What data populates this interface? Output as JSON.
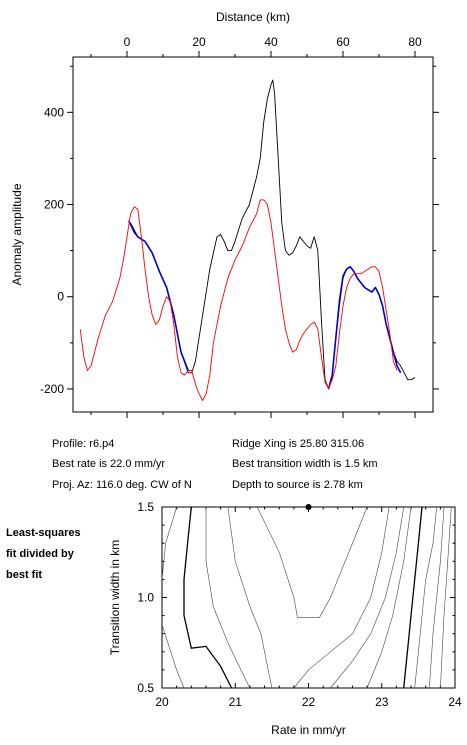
{
  "chart_data": [
    {
      "type": "line",
      "title": "",
      "xlabel": "Distance (km)",
      "ylabel": "Anomaly amplitude",
      "xlim": [
        -15,
        85
      ],
      "ylim": [
        -250,
        520
      ],
      "x_ticks": [
        "0",
        "20",
        "40",
        "60",
        "80"
      ],
      "y_ticks": [
        "400",
        "200",
        "0",
        "-200"
      ],
      "grid": false,
      "series": [
        {
          "color": "#000000",
          "points": [
            [
              1,
              160
            ],
            [
              3,
              130
            ],
            [
              5,
              120
            ],
            [
              7,
              95
            ],
            [
              9,
              55
            ],
            [
              11,
              20
            ],
            [
              13,
              -40
            ],
            [
              15,
              -120
            ],
            [
              17,
              -165
            ],
            [
              18,
              -165
            ],
            [
              19,
              -140
            ],
            [
              21,
              -40
            ],
            [
              23,
              60
            ],
            [
              25,
              130
            ],
            [
              26,
              135
            ],
            [
              27,
              120
            ],
            [
              28,
              100
            ],
            [
              29,
              100
            ],
            [
              30,
              120
            ],
            [
              32,
              170
            ],
            [
              34,
              200
            ],
            [
              36,
              260
            ],
            [
              37,
              300
            ],
            [
              38,
              380
            ],
            [
              39,
              430
            ],
            [
              40,
              460
            ],
            [
              40.5,
              470
            ],
            [
              41,
              440
            ],
            [
              42,
              300
            ],
            [
              43,
              160
            ],
            [
              44,
              100
            ],
            [
              45,
              90
            ],
            [
              46,
              95
            ],
            [
              47,
              110
            ],
            [
              48,
              130
            ],
            [
              49,
              120
            ],
            [
              50,
              110
            ],
            [
              51,
              105
            ],
            [
              52,
              130
            ],
            [
              53,
              100
            ],
            [
              54,
              -50
            ],
            [
              55,
              -180
            ],
            [
              56,
              -200
            ],
            [
              57,
              -170
            ],
            [
              58,
              -90
            ],
            [
              59,
              -20
            ],
            [
              60,
              40
            ],
            [
              61,
              60
            ],
            [
              62,
              65
            ],
            [
              63,
              55
            ],
            [
              64,
              40
            ],
            [
              65,
              30
            ],
            [
              66,
              20
            ],
            [
              67,
              15
            ],
            [
              68,
              10
            ],
            [
              69,
              20
            ],
            [
              70,
              5
            ],
            [
              71,
              -20
            ],
            [
              72,
              -60
            ],
            [
              73,
              -90
            ],
            [
              74,
              -120
            ],
            [
              75,
              -140
            ],
            [
              76,
              -150
            ],
            [
              77,
              -165
            ],
            [
              78,
              -180
            ],
            [
              79,
              -180
            ],
            [
              80,
              -175
            ]
          ]
        },
        {
          "color": "#0000cc",
          "points": [
            [
              0.5,
              165
            ],
            [
              2,
              140
            ],
            [
              3,
              130
            ],
            [
              5,
              120
            ],
            [
              7,
              95
            ],
            [
              9,
              55
            ],
            [
              11,
              20
            ],
            [
              13,
              -40
            ],
            [
              15,
              -120
            ],
            [
              17,
              -160
            ]
          ]
        },
        {
          "color": "#0000cc",
          "points": [
            [
              56,
              -200
            ],
            [
              57,
              -170
            ],
            [
              58,
              -90
            ],
            [
              59,
              -10
            ],
            [
              60,
              45
            ],
            [
              61,
              60
            ],
            [
              62,
              65
            ],
            [
              63,
              55
            ],
            [
              64,
              40
            ],
            [
              65,
              30
            ],
            [
              66,
              20
            ],
            [
              67,
              15
            ],
            [
              68,
              10
            ],
            [
              69,
              20
            ],
            [
              70,
              5
            ],
            [
              71,
              -20
            ],
            [
              72,
              -60
            ],
            [
              73,
              -90
            ],
            [
              74,
              -120
            ],
            [
              75,
              -150
            ],
            [
              76,
              -165
            ]
          ]
        },
        {
          "color": "#ff0000",
          "points": [
            [
              -13,
              -70
            ],
            [
              -12,
              -130
            ],
            [
              -11,
              -160
            ],
            [
              -10,
              -150
            ],
            [
              -8,
              -90
            ],
            [
              -6,
              -40
            ],
            [
              -4,
              -10
            ],
            [
              -2,
              40
            ],
            [
              -1,
              80
            ],
            [
              0,
              130
            ],
            [
              1,
              180
            ],
            [
              2,
              195
            ],
            [
              3,
              190
            ],
            [
              4,
              130
            ],
            [
              5,
              60
            ],
            [
              6,
              0
            ],
            [
              7,
              -40
            ],
            [
              8,
              -60
            ],
            [
              9,
              -50
            ],
            [
              10,
              -20
            ],
            [
              11,
              0
            ],
            [
              12,
              -10
            ],
            [
              13,
              -60
            ],
            [
              14,
              -130
            ],
            [
              15,
              -165
            ],
            [
              16,
              -170
            ],
            [
              17,
              -160
            ],
            [
              18,
              -160
            ],
            [
              19,
              -190
            ],
            [
              20,
              -210
            ],
            [
              21,
              -225
            ],
            [
              22,
              -210
            ],
            [
              23,
              -170
            ],
            [
              24,
              -100
            ],
            [
              26,
              -20
            ],
            [
              28,
              40
            ],
            [
              30,
              80
            ],
            [
              32,
              110
            ],
            [
              34,
              150
            ],
            [
              36,
              180
            ],
            [
              37,
              210
            ],
            [
              38,
              210
            ],
            [
              39,
              200
            ],
            [
              40,
              160
            ],
            [
              41,
              100
            ],
            [
              42,
              40
            ],
            [
              43,
              -20
            ],
            [
              44,
              -70
            ],
            [
              45,
              -100
            ],
            [
              46,
              -120
            ],
            [
              47,
              -115
            ],
            [
              48,
              -95
            ],
            [
              49,
              -80
            ],
            [
              50,
              -70
            ],
            [
              51,
              -60
            ],
            [
              52,
              -55
            ],
            [
              53,
              -70
            ],
            [
              54,
              -130
            ],
            [
              55,
              -185
            ],
            [
              56,
              -200
            ],
            [
              57,
              -180
            ],
            [
              58,
              -150
            ],
            [
              59,
              -80
            ],
            [
              60,
              -20
            ],
            [
              61,
              20
            ],
            [
              62,
              40
            ],
            [
              63,
              50
            ],
            [
              64,
              50
            ],
            [
              65,
              50
            ],
            [
              66,
              55
            ],
            [
              67,
              60
            ],
            [
              68,
              65
            ],
            [
              69,
              65
            ],
            [
              70,
              55
            ],
            [
              71,
              20
            ],
            [
              72,
              -30
            ],
            [
              73,
              -80
            ],
            [
              74,
              -140
            ],
            [
              75,
              -160
            ]
          ]
        }
      ]
    },
    {
      "type": "contour",
      "title": "",
      "xlabel": "Rate in mm/yr",
      "ylabel": "Transition width in km",
      "xlim": [
        20,
        24
      ],
      "ylim": [
        0.5,
        1.5
      ],
      "x_ticks": [
        "20",
        "21",
        "22",
        "23",
        "24"
      ],
      "y_ticks": [
        "1.5",
        "1.0",
        "0.5"
      ],
      "best_fit_marker": [
        22.0,
        1.5
      ],
      "contours": [
        {
          "weight": "heavy",
          "points": [
            [
              20.4,
              1.5
            ],
            [
              20.35,
              1.3
            ],
            [
              20.3,
              1.1
            ],
            [
              20.3,
              0.9
            ],
            [
              20.4,
              0.72
            ],
            [
              20.6,
              0.73
            ],
            [
              20.8,
              0.62
            ],
            [
              20.95,
              0.5
            ]
          ]
        },
        {
          "weight": "heavy",
          "points": [
            [
              23.55,
              1.5
            ],
            [
              23.5,
              1.3
            ],
            [
              23.45,
              1.1
            ],
            [
              23.4,
              0.9
            ],
            [
              23.35,
              0.7
            ],
            [
              23.3,
              0.5
            ]
          ]
        },
        {
          "weight": "thin",
          "points": [
            [
              20.2,
              1.5
            ],
            [
              20.05,
              1.3
            ],
            [
              20.0,
              1.1
            ]
          ]
        },
        {
          "weight": "thin",
          "points": [
            [
              20.0,
              0.85
            ],
            [
              20.2,
              0.6
            ],
            [
              20.3,
              0.5
            ]
          ]
        },
        {
          "weight": "thin",
          "points": [
            [
              20.6,
              1.5
            ],
            [
              20.6,
              1.2
            ],
            [
              20.7,
              0.95
            ],
            [
              20.9,
              0.75
            ],
            [
              21.1,
              0.58
            ],
            [
              21.2,
              0.5
            ]
          ]
        },
        {
          "weight": "thin",
          "points": [
            [
              20.9,
              1.5
            ],
            [
              21.0,
              1.2
            ],
            [
              21.2,
              0.95
            ],
            [
              21.35,
              0.8
            ],
            [
              21.45,
              0.6
            ],
            [
              21.5,
              0.5
            ]
          ]
        },
        {
          "weight": "thin",
          "points": [
            [
              21.3,
              1.5
            ],
            [
              21.6,
              1.25
            ],
            [
              21.8,
              1.0
            ],
            [
              21.85,
              0.89
            ],
            [
              22.15,
              0.89
            ],
            [
              22.3,
              1.0
            ],
            [
              22.6,
              1.3
            ],
            [
              22.8,
              1.5
            ]
          ]
        },
        {
          "weight": "thin",
          "points": [
            [
              21.8,
              0.5
            ],
            [
              22.0,
              0.6
            ],
            [
              22.3,
              0.7
            ],
            [
              22.6,
              0.8
            ],
            [
              22.85,
              1.0
            ],
            [
              23.0,
              1.25
            ],
            [
              23.1,
              1.5
            ]
          ]
        },
        {
          "weight": "thin",
          "points": [
            [
              22.3,
              0.5
            ],
            [
              22.6,
              0.65
            ],
            [
              22.85,
              0.8
            ],
            [
              23.05,
              1.0
            ],
            [
              23.2,
              1.25
            ],
            [
              23.3,
              1.5
            ]
          ]
        },
        {
          "weight": "thin",
          "points": [
            [
              22.8,
              0.5
            ],
            [
              23.0,
              0.7
            ],
            [
              23.15,
              0.9
            ],
            [
              23.3,
              1.2
            ],
            [
              23.4,
              1.5
            ]
          ]
        },
        {
          "weight": "thin",
          "points": [
            [
              23.75,
              1.5
            ],
            [
              23.7,
              1.3
            ],
            [
              23.6,
              1.1
            ],
            [
              23.55,
              0.9
            ],
            [
              23.5,
              0.7
            ],
            [
              23.45,
              0.5
            ]
          ]
        },
        {
          "weight": "thin",
          "points": [
            [
              23.85,
              1.5
            ],
            [
              23.8,
              1.2
            ],
            [
              23.75,
              1.0
            ],
            [
              23.7,
              0.8
            ],
            [
              23.65,
              0.5
            ]
          ]
        },
        {
          "weight": "thin",
          "points": [
            [
              23.95,
              1.5
            ],
            [
              23.9,
              1.2
            ],
            [
              23.85,
              0.9
            ],
            [
              23.8,
              0.5
            ]
          ]
        }
      ]
    }
  ],
  "info": {
    "profile": "Profile: r6.p4",
    "ridge_xing": "Ridge Xing is 25.80 315.06",
    "best_rate": "Best rate is 22.0 mm/yr",
    "best_transition": "Best transition width is 1.5 km",
    "proj_az": "Proj. Az: 116.0 deg. CW of N",
    "depth": "Depth to source is   2.78 km"
  },
  "side_note": [
    "Least-squares",
    "fit divided by",
    "best fit"
  ]
}
